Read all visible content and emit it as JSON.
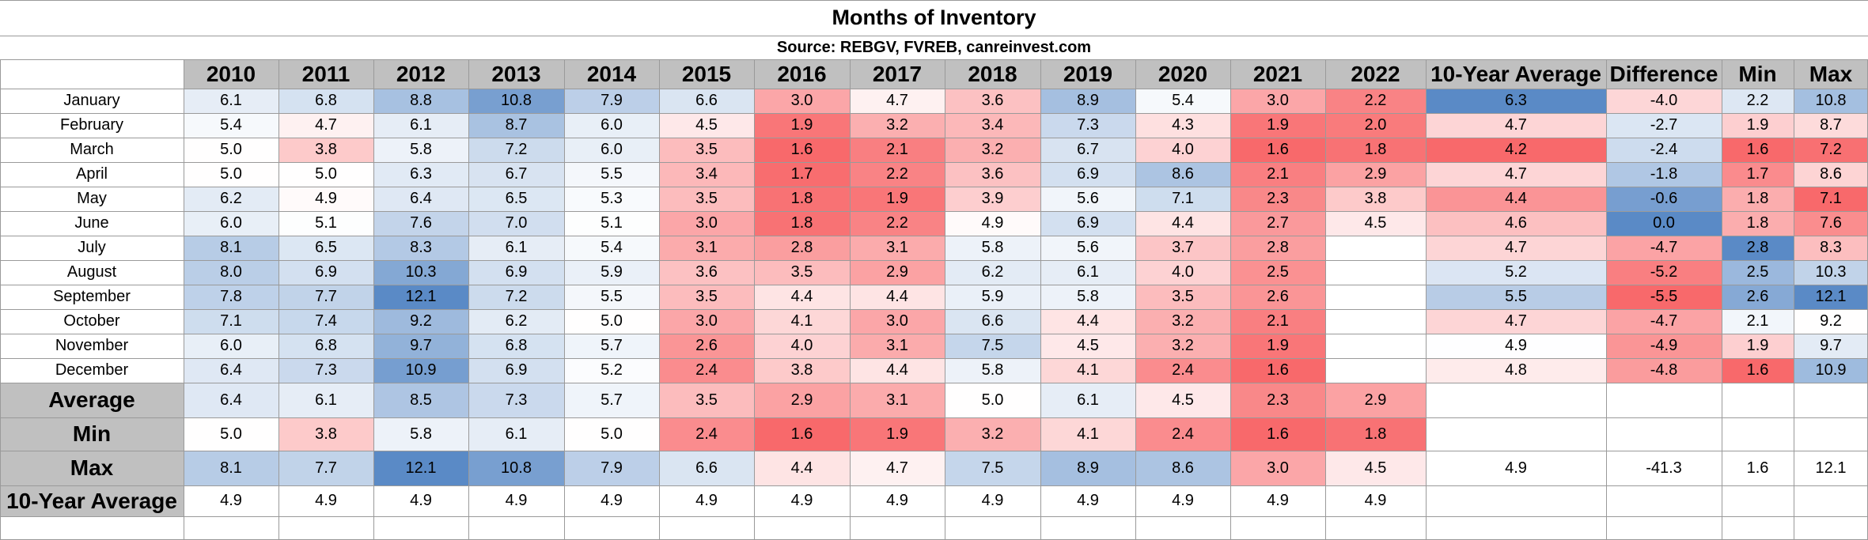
{
  "title": "Months of Inventory",
  "source": "Source: REBGV, FVREB, canreinvest.com",
  "chart_data": {
    "type": "table",
    "title": "Months of Inventory",
    "subtitle": "Source: REBGV, FVREB, canreinvest.com",
    "columns": [
      "2010",
      "2011",
      "2012",
      "2013",
      "2014",
      "2015",
      "2016",
      "2017",
      "2018",
      "2019",
      "2020",
      "2021",
      "2022",
      "10-Year Average",
      "Difference",
      "Min",
      "Max"
    ],
    "months": [
      "January",
      "February",
      "March",
      "April",
      "May",
      "June",
      "July",
      "August",
      "September",
      "October",
      "November",
      "December"
    ],
    "rows": [
      [
        "6.1",
        "6.8",
        "8.8",
        "10.8",
        "7.9",
        "6.6",
        "3.0",
        "4.7",
        "3.6",
        "8.9",
        "5.4",
        "3.0",
        "2.2",
        "6.3",
        "-4.0",
        "2.2",
        "10.8"
      ],
      [
        "5.4",
        "4.7",
        "6.1",
        "8.7",
        "6.0",
        "4.5",
        "1.9",
        "3.2",
        "3.4",
        "7.3",
        "4.3",
        "1.9",
        "2.0",
        "4.7",
        "-2.7",
        "1.9",
        "8.7"
      ],
      [
        "5.0",
        "3.8",
        "5.8",
        "7.2",
        "6.0",
        "3.5",
        "1.6",
        "2.1",
        "3.2",
        "6.7",
        "4.0",
        "1.6",
        "1.8",
        "4.2",
        "-2.4",
        "1.6",
        "7.2"
      ],
      [
        "5.0",
        "5.0",
        "6.3",
        "6.7",
        "5.5",
        "3.4",
        "1.7",
        "2.2",
        "3.6",
        "6.9",
        "8.6",
        "2.1",
        "2.9",
        "4.7",
        "-1.8",
        "1.7",
        "8.6"
      ],
      [
        "6.2",
        "4.9",
        "6.4",
        "6.5",
        "5.3",
        "3.5",
        "1.8",
        "1.9",
        "3.9",
        "5.6",
        "7.1",
        "2.3",
        "3.8",
        "4.4",
        "-0.6",
        "1.8",
        "7.1"
      ],
      [
        "6.0",
        "5.1",
        "7.6",
        "7.0",
        "5.1",
        "3.0",
        "1.8",
        "2.2",
        "4.9",
        "6.9",
        "4.4",
        "2.7",
        "4.5",
        "4.6",
        "0.0",
        "1.8",
        "7.6"
      ],
      [
        "8.1",
        "6.5",
        "8.3",
        "6.1",
        "5.4",
        "3.1",
        "2.8",
        "3.1",
        "5.8",
        "5.6",
        "3.7",
        "2.8",
        "",
        "4.7",
        "-4.7",
        "2.8",
        "8.3"
      ],
      [
        "8.0",
        "6.9",
        "10.3",
        "6.9",
        "5.9",
        "3.6",
        "3.5",
        "2.9",
        "6.2",
        "6.1",
        "4.0",
        "2.5",
        "",
        "5.2",
        "-5.2",
        "2.5",
        "10.3"
      ],
      [
        "7.8",
        "7.7",
        "12.1",
        "7.2",
        "5.5",
        "3.5",
        "4.4",
        "4.4",
        "5.9",
        "5.8",
        "3.5",
        "2.6",
        "",
        "5.5",
        "-5.5",
        "2.6",
        "12.1"
      ],
      [
        "7.1",
        "7.4",
        "9.2",
        "6.2",
        "5.0",
        "3.0",
        "4.1",
        "3.0",
        "6.6",
        "4.4",
        "3.2",
        "2.1",
        "",
        "4.7",
        "-4.7",
        "2.1",
        "9.2"
      ],
      [
        "6.0",
        "6.8",
        "9.7",
        "6.8",
        "5.7",
        "2.6",
        "4.0",
        "3.1",
        "7.5",
        "4.5",
        "3.2",
        "1.9",
        "",
        "4.9",
        "-4.9",
        "1.9",
        "9.7"
      ],
      [
        "6.4",
        "7.3",
        "10.9",
        "6.9",
        "5.2",
        "2.4",
        "3.8",
        "4.4",
        "5.8",
        "4.1",
        "2.4",
        "1.6",
        "",
        "4.8",
        "-4.8",
        "1.6",
        "10.9"
      ]
    ],
    "stat_labels": [
      "Average",
      "Min",
      "Max",
      "10-Year Average"
    ],
    "stat_rows": [
      [
        "6.4",
        "6.1",
        "8.5",
        "7.3",
        "5.7",
        "3.5",
        "2.9",
        "3.1",
        "5.0",
        "6.1",
        "4.5",
        "2.3",
        "2.9",
        "",
        "",
        "",
        ""
      ],
      [
        "5.0",
        "3.8",
        "5.8",
        "6.1",
        "5.0",
        "2.4",
        "1.6",
        "1.9",
        "3.2",
        "4.1",
        "2.4",
        "1.6",
        "1.8",
        "",
        "",
        "",
        ""
      ],
      [
        "8.1",
        "7.7",
        "12.1",
        "10.8",
        "7.9",
        "6.6",
        "4.4",
        "4.7",
        "7.5",
        "8.9",
        "8.6",
        "3.0",
        "4.5",
        "4.9",
        "-41.3",
        "1.6",
        "12.1"
      ],
      [
        "4.9",
        "4.9",
        "4.9",
        "4.9",
        "4.9",
        "4.9",
        "4.9",
        "4.9",
        "4.9",
        "4.9",
        "4.9",
        "4.9",
        "4.9",
        "",
        "",
        "",
        ""
      ]
    ],
    "color_scale": {
      "low": "#f8696b",
      "mid": "#ffffff",
      "high": "#5a8ac6"
    }
  }
}
